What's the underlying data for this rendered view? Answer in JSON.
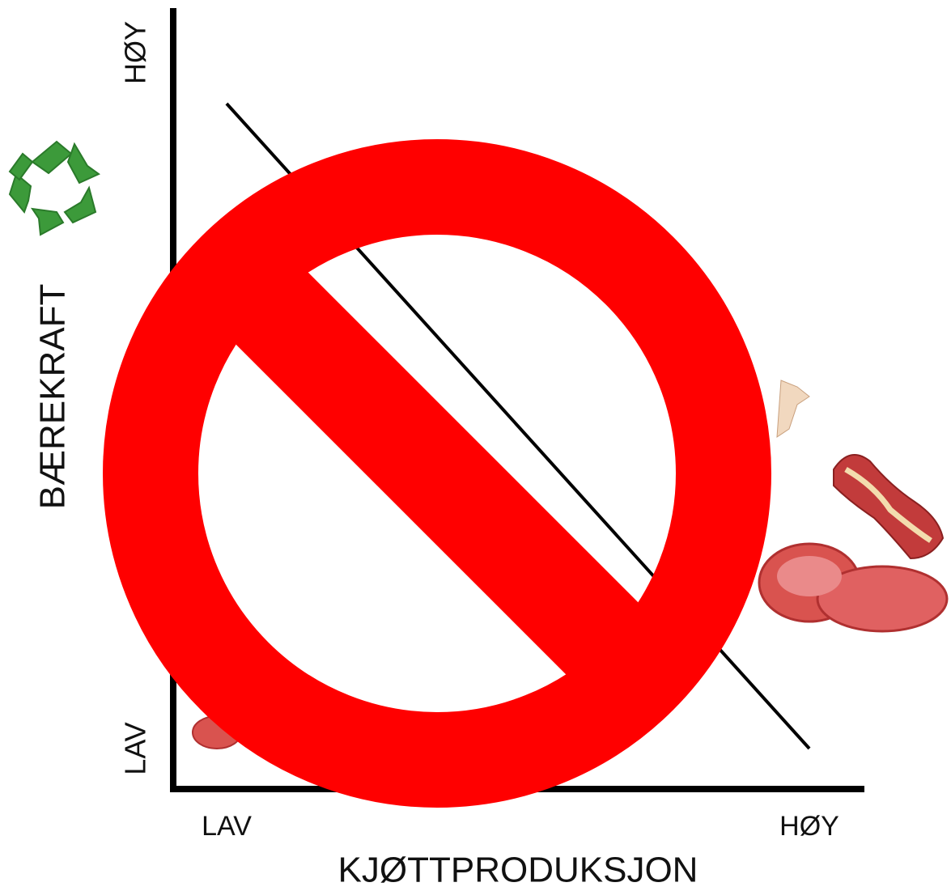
{
  "y_axis": {
    "label": "BÆREKRAFT",
    "high": "HØY",
    "low": "LAV"
  },
  "x_axis": {
    "label": "KJØTTPRODUKSJON",
    "low": "LAV",
    "high": "HØY"
  }
}
